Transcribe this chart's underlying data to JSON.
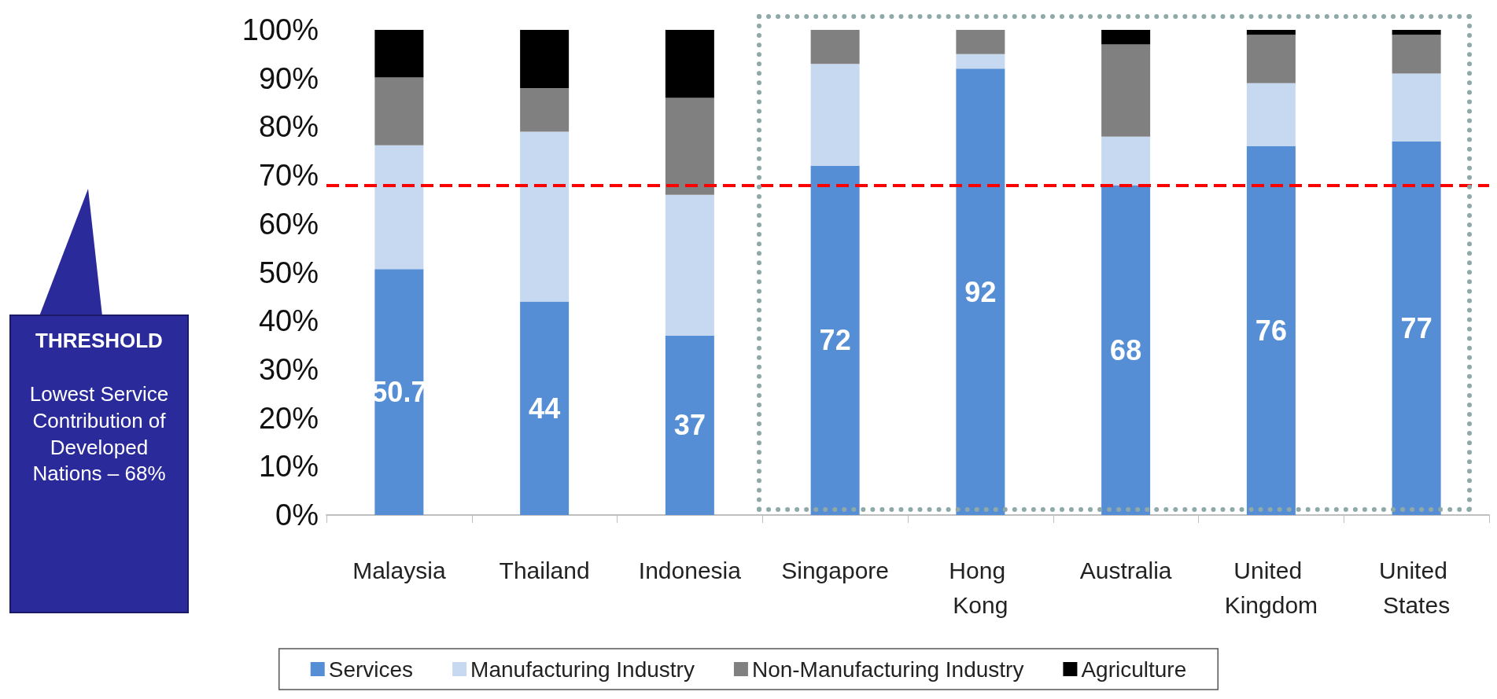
{
  "chart_data": {
    "type": "bar",
    "stacked": true,
    "categories": [
      "Malaysia",
      "Thailand",
      "Indonesia",
      "Singapore",
      "Hong Kong",
      "Australia",
      "United Kingdom",
      "United States"
    ],
    "series": [
      {
        "name": "Services",
        "color": "#558ed5",
        "values": [
          50.7,
          44,
          37,
          72,
          92,
          68,
          76,
          77
        ],
        "value_labels": [
          "50.7",
          "44",
          "37",
          "72",
          "92",
          "68",
          "76",
          "77"
        ]
      },
      {
        "name": "Manufacturing Industry",
        "color": "#c6d9f1",
        "values": [
          25.5,
          35,
          29,
          21,
          3,
          10,
          13,
          14
        ]
      },
      {
        "name": "Non-Manufacturing Industry",
        "color": "#808080",
        "values": [
          14,
          9,
          20,
          7,
          5,
          19,
          10,
          8
        ]
      },
      {
        "name": "Agriculture",
        "color": "#000000",
        "values": [
          9.8,
          12,
          14,
          0,
          0,
          3,
          1,
          1
        ]
      }
    ],
    "ylim": [
      0,
      100
    ],
    "yticks": [
      {
        "value": 0,
        "label": "0%"
      },
      {
        "value": 10,
        "label": "10%"
      },
      {
        "value": 20,
        "label": "20%"
      },
      {
        "value": 30,
        "label": "30%"
      },
      {
        "value": 40,
        "label": "40%"
      },
      {
        "value": 50,
        "label": "50%"
      },
      {
        "value": 60,
        "label": "60%"
      },
      {
        "value": 70,
        "label": "70%"
      },
      {
        "value": 80,
        "label": "80%"
      },
      {
        "value": 90,
        "label": "90%"
      },
      {
        "value": 100,
        "label": "100%"
      }
    ],
    "ref_lines": [
      {
        "axis": "y",
        "value": 68,
        "color": "#ff0000",
        "line_style": "dashed"
      }
    ],
    "annotations": [
      "THRESHOLD",
      "Lowest Service Contribution of Developed Nations – 68%"
    ],
    "grid": false,
    "legend": "bottom"
  }
}
